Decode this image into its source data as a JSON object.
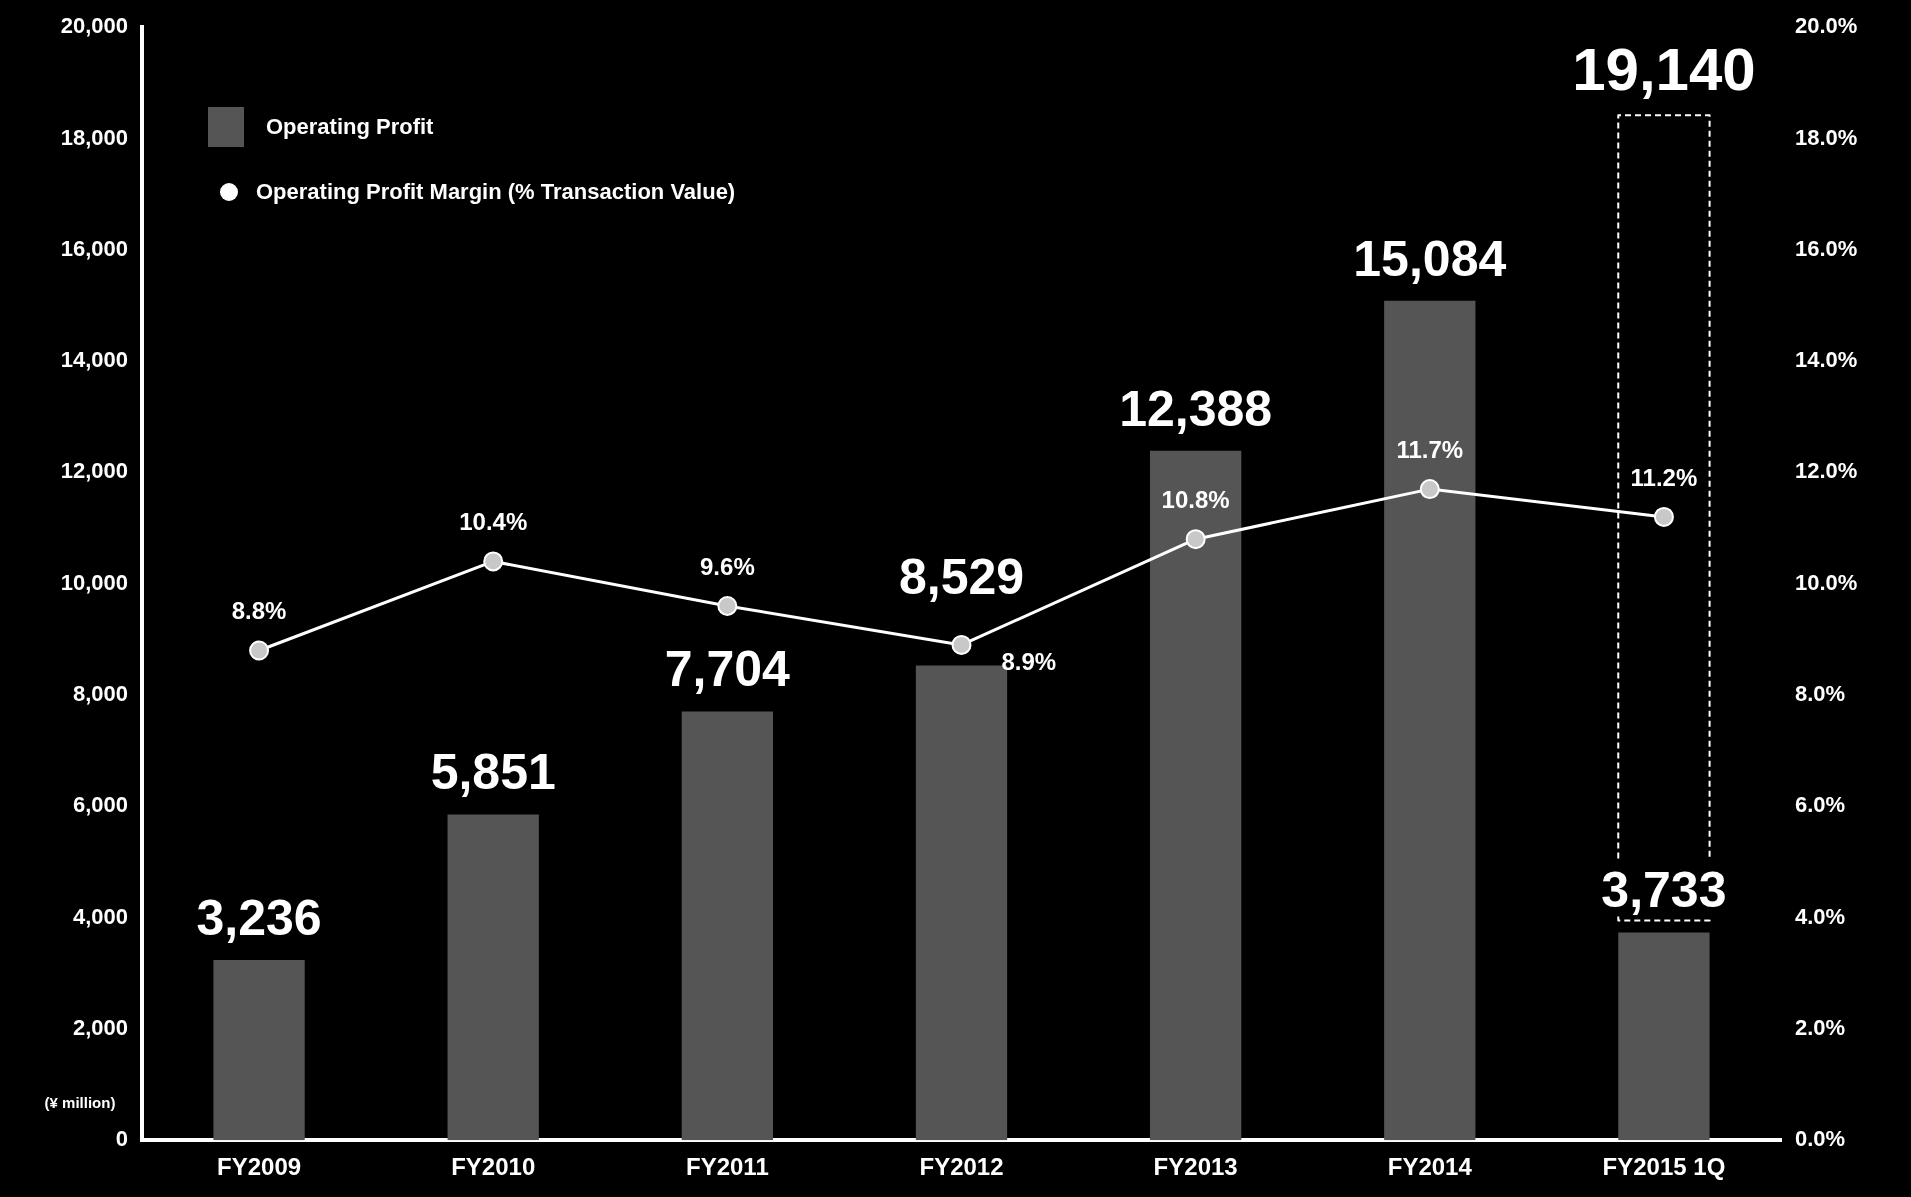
{
  "chart_data": {
    "type": "bar",
    "categories": [
      "FY2009",
      "FY2010",
      "FY2011",
      "FY2012",
      "FY2013",
      "FY2014",
      "FY2015 1Q"
    ],
    "series": [
      {
        "name": "Operating Profit",
        "color": "#555555",
        "values": [
          3236,
          5851,
          7704,
          8529,
          12388,
          15084,
          3733
        ],
        "value_labels": [
          "3,236",
          "5,851",
          "7,704",
          "8,529",
          "12,388",
          "15,084",
          "3,733"
        ]
      },
      {
        "name": "Operating Profit Margin  (% Transaction Value)",
        "type": "line",
        "axis": "y2",
        "color": "#ffffff",
        "values": [
          8.8,
          10.4,
          9.6,
          8.9,
          10.8,
          11.7,
          11.2
        ],
        "value_labels": [
          "8.8%",
          "10.4%",
          "9.6%",
          "8.9%",
          "10.8%",
          "11.7%",
          "11.2%"
        ]
      }
    ],
    "ylim": [
      0,
      20000
    ],
    "yticks": [
      {
        "value": 0,
        "label": "0"
      },
      {
        "value": 2000,
        "label": "2,000"
      },
      {
        "value": 4000,
        "label": "4,000"
      },
      {
        "value": 6000,
        "label": "6,000"
      },
      {
        "value": 8000,
        "label": "8,000"
      },
      {
        "value": 10000,
        "label": "10,000"
      },
      {
        "value": 12000,
        "label": "12,000"
      },
      {
        "value": 14000,
        "label": "14,000"
      },
      {
        "value": 16000,
        "label": "16,000"
      },
      {
        "value": 18000,
        "label": "18,000"
      },
      {
        "value": 20000,
        "label": "20,000"
      }
    ],
    "y2lim": [
      0,
      20
    ],
    "y2ticks": [
      {
        "value": 0,
        "label": "0.0%"
      },
      {
        "value": 2,
        "label": "2.0%"
      },
      {
        "value": 4,
        "label": "4.0%"
      },
      {
        "value": 6,
        "label": "6.0%"
      },
      {
        "value": 8,
        "label": "8.0%"
      },
      {
        "value": 10,
        "label": "10.0%"
      },
      {
        "value": 12,
        "label": "12.0%"
      },
      {
        "value": 14,
        "label": "14.0%"
      },
      {
        "value": 16,
        "label": "16.0%"
      },
      {
        "value": 18,
        "label": "18.0%"
      },
      {
        "value": 20,
        "label": "20.0%"
      }
    ],
    "annotations": [
      "(¥ million)",
      "19,140"
    ],
    "grid": false,
    "legend": "top left",
    "marker": "circle",
    "line_style": "solid"
  }
}
